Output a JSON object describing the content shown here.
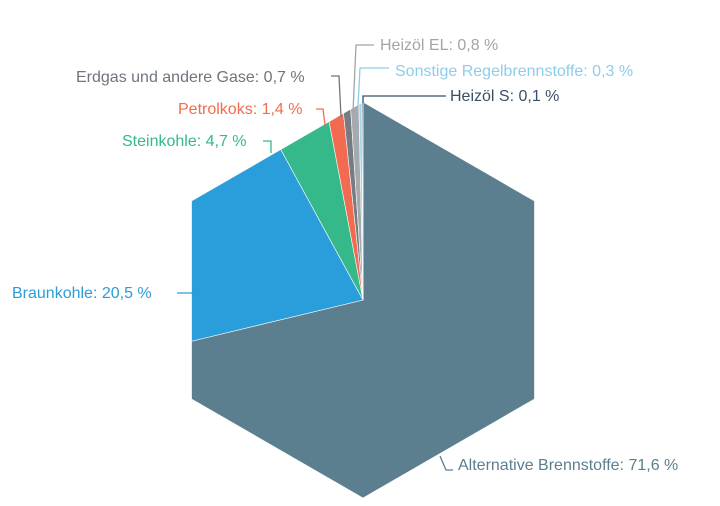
{
  "chart_data": {
    "type": "pie",
    "shape": "hexagon",
    "slices": [
      {
        "label": "Alternative Brennstoffe: 71,6 %",
        "value": 71.6,
        "color": "#5b7f8f",
        "label_color": "#5b7f8f"
      },
      {
        "label": "Braunkohle: 20,5 %",
        "value": 20.5,
        "color": "#2a9ddb",
        "label_color": "#2a9ddb"
      },
      {
        "label": "Steinkohle: 4,7 %",
        "value": 4.7,
        "color": "#35b98a",
        "label_color": "#35b98a"
      },
      {
        "label": "Petrolkoks: 1,4 %",
        "value": 1.4,
        "color": "#f26b50",
        "label_color": "#f26b50"
      },
      {
        "label": "Erdgas und andere Gase: 0,7 %",
        "value": 0.7,
        "color": "#757c84",
        "label_color": "#6e757d"
      },
      {
        "label": "Heizöl EL: 0,8 %",
        "value": 0.8,
        "color": "#a7aaad",
        "label_color": "#a2a5a8"
      },
      {
        "label": "Sonstige Regelbrennstoffe: 0,3 %",
        "value": 0.3,
        "color": "#9fd6ee",
        "label_color": "#8dcdea"
      },
      {
        "label": "Heizöl S: 0,1 %",
        "value": 0.1,
        "color": "#3a4f66",
        "label_color": "#3a4f66"
      }
    ]
  }
}
